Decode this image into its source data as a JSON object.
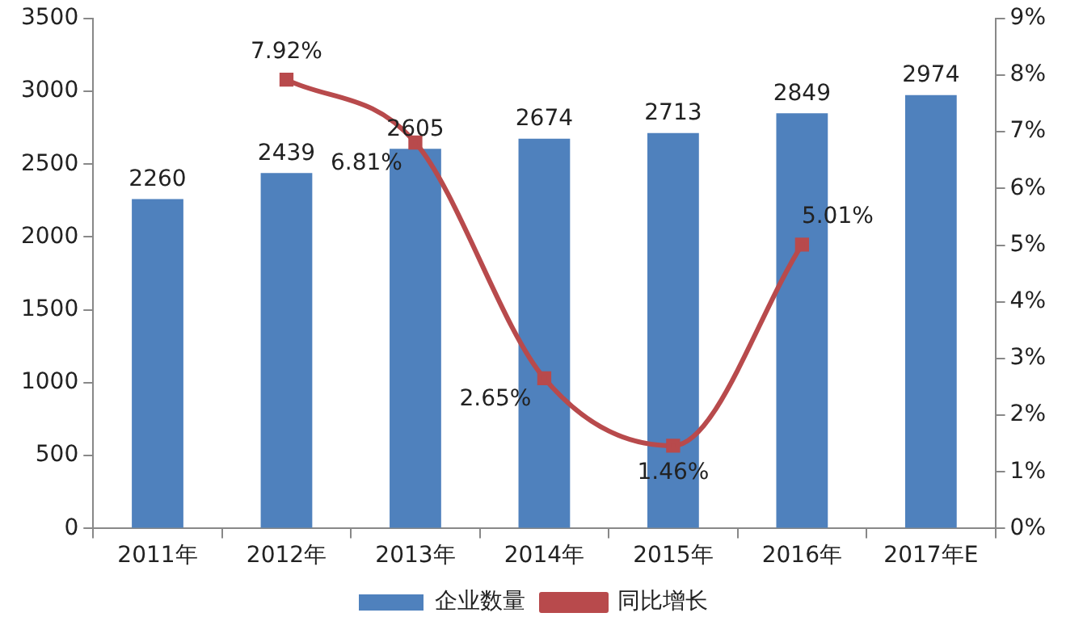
{
  "chart_data": {
    "type": "bar",
    "categories": [
      "2011年",
      "2012年",
      "2013年",
      "2014年",
      "2015年",
      "2016年",
      "2017年E"
    ],
    "series": [
      {
        "name": "企业数量",
        "color": "#4f81bd",
        "values": [
          2260,
          2439,
          2605,
          2674,
          2713,
          2849,
          2974
        ],
        "value_labels": [
          "2260",
          "2439",
          "2605",
          "2674",
          "2713",
          "2849",
          "2974"
        ]
      },
      {
        "name": "同比增长",
        "type": "line",
        "axis": "y2",
        "color": "#b84a4c",
        "values": [
          null,
          7.92,
          6.81,
          2.65,
          1.46,
          5.01,
          null
        ],
        "value_labels": [
          null,
          "7.92%",
          "6.81%",
          "2.65%",
          "1.46%",
          "5.01%",
          null
        ]
      }
    ],
    "ylim": [
      0,
      3500
    ],
    "yticks": [
      0,
      500,
      1000,
      1500,
      2000,
      2500,
      3000,
      3500
    ],
    "y2lim": [
      0,
      9
    ],
    "y2ticks": [
      {
        "value": 0,
        "label": "0%"
      },
      {
        "value": 1,
        "label": "1%"
      },
      {
        "value": 2,
        "label": "2%"
      },
      {
        "value": 3,
        "label": "3%"
      },
      {
        "value": 4,
        "label": "4%"
      },
      {
        "value": 5,
        "label": "5%"
      },
      {
        "value": 6,
        "label": "6%"
      },
      {
        "value": 7,
        "label": "7%"
      },
      {
        "value": 8,
        "label": "8%"
      },
      {
        "value": 9,
        "label": "9%"
      }
    ],
    "grid": false,
    "legend": "bottom",
    "marker": "square",
    "line_style": "solid"
  }
}
